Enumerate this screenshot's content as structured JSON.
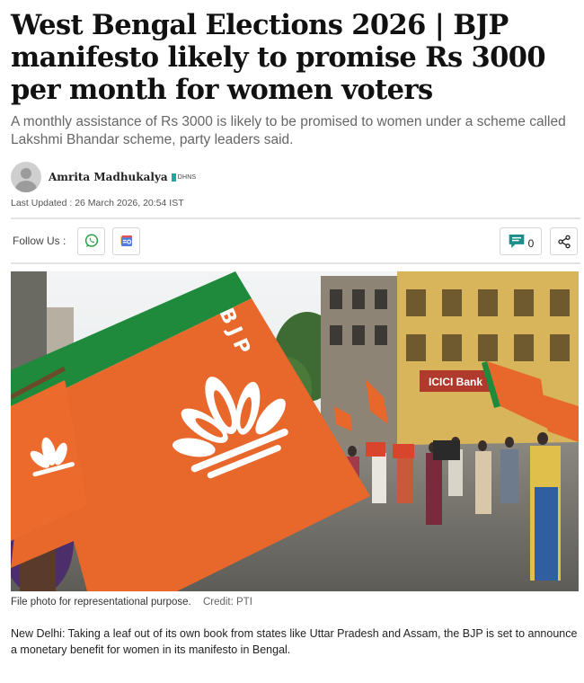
{
  "article": {
    "headline": "West Bengal Elections 2026 | BJP manifesto likely to promise Rs 3000 per month for women voters",
    "subhead": "A monthly assistance of Rs 3000 is likely to be promised to women under a scheme called Lakshmi Bhandar scheme, party leaders said.",
    "author": "Amrita Madhukalya",
    "author_tag": "DHNS",
    "last_updated": "Last Updated : 26 March 2026, 20:54 IST",
    "follow_label": "Follow Us :",
    "comment_count": "0",
    "photo_caption": "File photo for representational purpose.",
    "photo_credit": "Credit: PTI",
    "photo_text": {
      "flag_letters": "BJP",
      "bank_sign": "ICICI Bank"
    },
    "body_paragraph": "New Delhi: Taking a leaf out of its own book from states like Uttar Pradesh and Assam, the BJP is set to announce a monetary benefit for women in its manifesto in Bengal."
  },
  "colors": {
    "saffron": "#e8672a",
    "green": "#1f8a3c",
    "whatsapp": "#25a244",
    "comment_teal": "#1c8f8a",
    "google_news_blue": "#4f7fde"
  },
  "icons": [
    "whatsapp-icon",
    "google-news-icon",
    "comment-icon",
    "share-icon",
    "avatar-placeholder-icon"
  ]
}
